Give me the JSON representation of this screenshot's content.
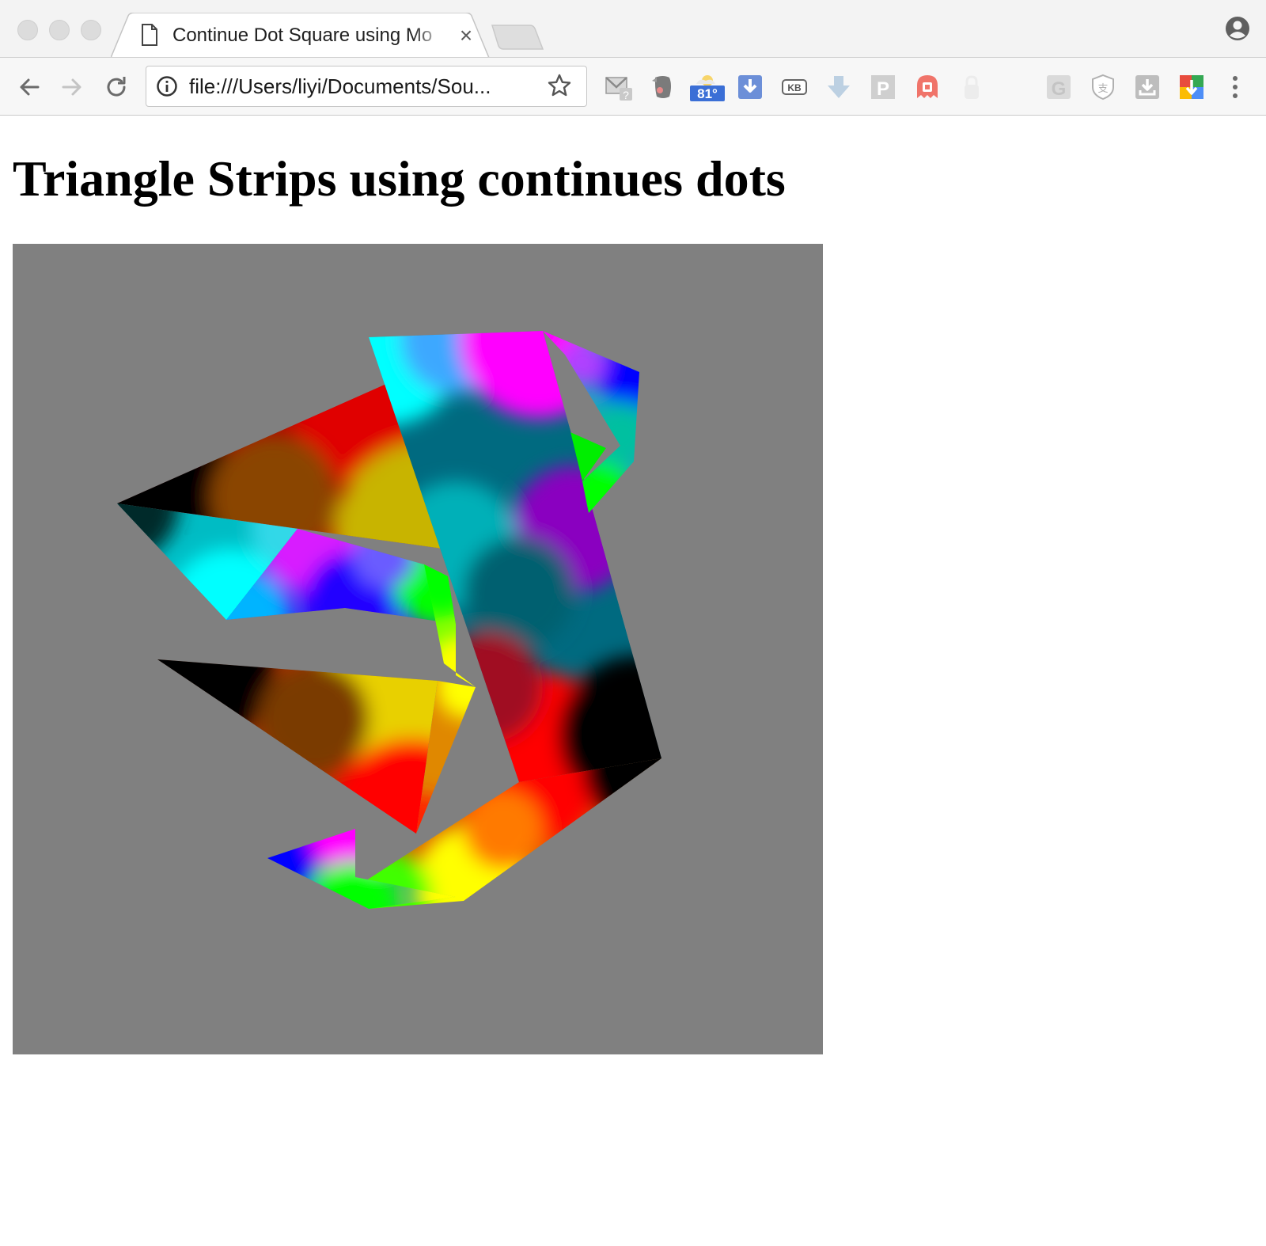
{
  "window": {
    "controls": [
      "close",
      "minimize",
      "zoom"
    ]
  },
  "tab": {
    "title": "Continue Dot Square using Mo",
    "icon": "page-icon",
    "close_glyph": "×"
  },
  "toolbar": {
    "back_icon": "arrow-left-icon",
    "forward_icon": "arrow-right-icon",
    "reload_icon": "reload-icon",
    "url": "file:///Users/liyi/Documents/Sou...",
    "bookmark_icon": "star-icon",
    "extensions": [
      {
        "name": "mail-checker-icon",
        "badge": "?"
      },
      {
        "name": "evernote-icon"
      },
      {
        "name": "weather-icon",
        "badge": "81°"
      },
      {
        "name": "download-blue-icon"
      },
      {
        "name": "keyboard-icon",
        "label": "KB"
      },
      {
        "name": "download-arrow-icon"
      },
      {
        "name": "p-extension-icon",
        "label": "P"
      },
      {
        "name": "ghost-icon"
      },
      {
        "name": "lock-icon"
      },
      {
        "name": "g-extension-icon",
        "label": "G"
      },
      {
        "name": "shield-icon",
        "label": "支"
      },
      {
        "name": "tray-download-icon"
      },
      {
        "name": "drive-download-icon"
      }
    ],
    "menu_icon": "more-vertical-icon"
  },
  "colors": {
    "canvas_background": "#808080",
    "tabstrip": "#f3f3f3",
    "toolbar": "#f7f7f7",
    "weather_badge": "#3b6fd6"
  },
  "page": {
    "heading": "Triangle Strips using continues dots"
  }
}
